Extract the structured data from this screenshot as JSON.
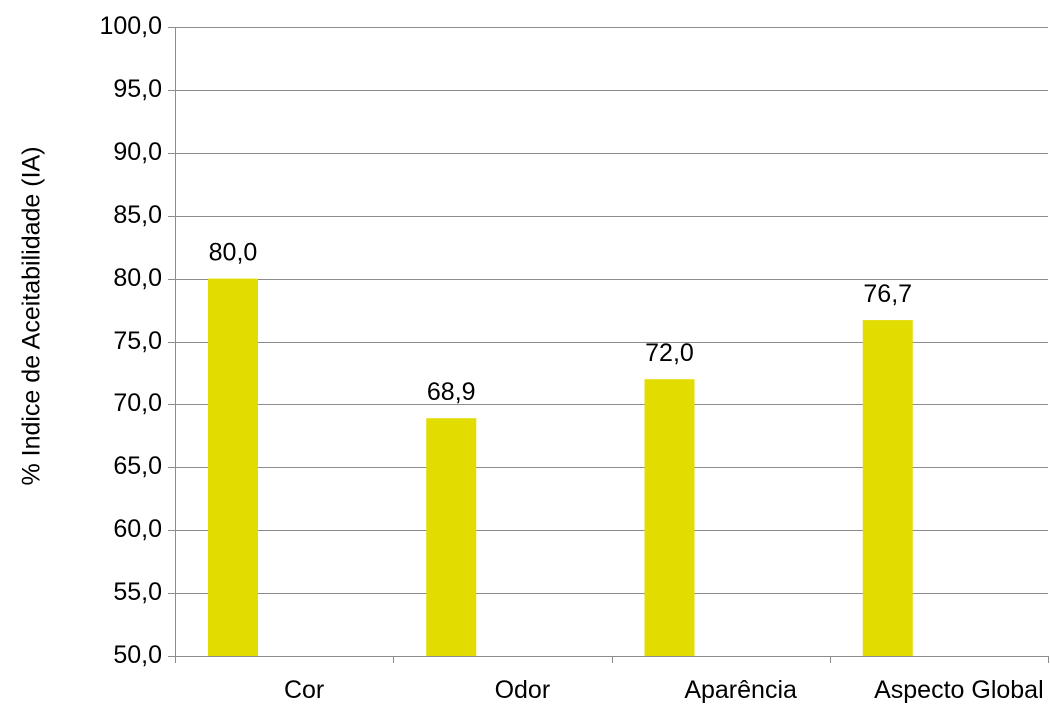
{
  "chart_data": {
    "type": "bar",
    "categories": [
      "Cor",
      "Odor",
      "Aparência",
      "Aspecto Global"
    ],
    "values": [
      80.0,
      68.9,
      72.0,
      76.7
    ],
    "data_labels": [
      "80,0",
      "68,9",
      "72,0",
      "76,7"
    ],
    "title": "",
    "xlabel": "",
    "ylabel": "% Indice de Aceitabilidade (IA)",
    "ylim": [
      50,
      100
    ],
    "yticks": [
      {
        "value": 50,
        "label": "50,0"
      },
      {
        "value": 55,
        "label": "55,0"
      },
      {
        "value": 60,
        "label": "60,0"
      },
      {
        "value": 65,
        "label": "65,0"
      },
      {
        "value": 70,
        "label": "70,0"
      },
      {
        "value": 75,
        "label": "75,0"
      },
      {
        "value": 80,
        "label": "80,0"
      },
      {
        "value": 85,
        "label": "85,0"
      },
      {
        "value": 90,
        "label": "90,0"
      },
      {
        "value": 95,
        "label": "95,0"
      },
      {
        "value": 100,
        "label": "100,0"
      }
    ],
    "grid": true,
    "legend": "none",
    "bar_color": "#e2dc00"
  }
}
